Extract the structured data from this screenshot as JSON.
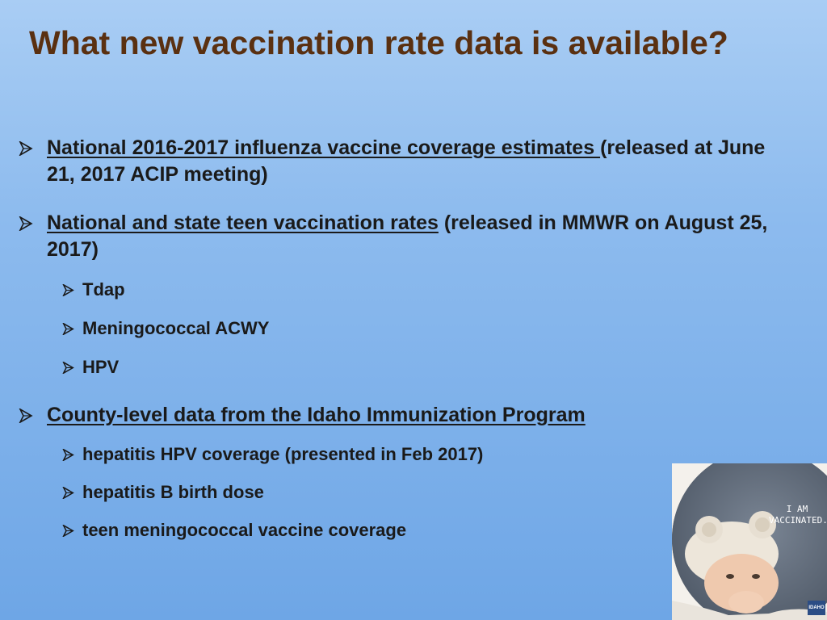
{
  "title": "What new vaccination rate data is available?",
  "bullets": [
    {
      "link": "National 2016-2017 influenza vaccine coverage estimates ",
      "rest": "(released at June 21, 2017 ACIP meeting)"
    },
    {
      "link": "National and state teen vaccination rates",
      "rest": " (released in MMWR on August 25, 2017)",
      "sub": [
        "Tdap",
        "Meningococcal ACWY",
        "HPV"
      ]
    },
    {
      "link": "County-level data from the Idaho Immunization Program",
      "rest": "",
      "sub": [
        "hepatitis HPV coverage (presented in Feb 2017)",
        "hepatitis B birth dose",
        "teen meningococcal vaccine coverage"
      ]
    }
  ],
  "photo": {
    "text_line1": "I AM",
    "text_line2": "VACCINATED.",
    "badge": "IDAHO"
  },
  "colors": {
    "title": "#5a3011",
    "text": "#1a1a1a",
    "bg_top": "#a9cdf4",
    "bg_bottom": "#6ea6e6"
  }
}
